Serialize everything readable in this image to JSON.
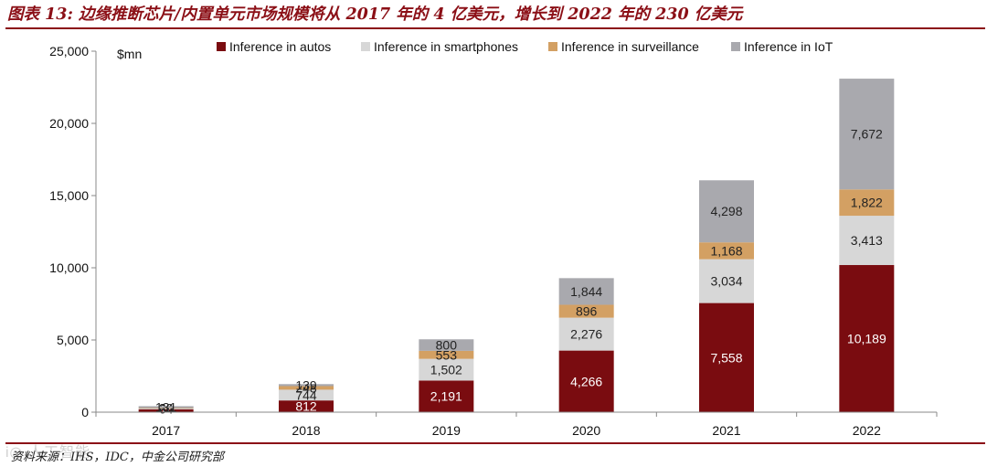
{
  "title": "图表 13: 边缘推断芯片/内置单元市场规模将从 2017 年的 4 亿美元，增长到 2022 年的 230 亿美元",
  "source": "资料来源：IHS，IDC，中金公司研究部",
  "watermark": "i◎ 人工智能",
  "chart_data": {
    "type": "bar",
    "stacked": true,
    "title": "图表 13: 边缘推断芯片/内置单元市场规模将从 2017 年的 4 亿美元，增长到 2022 年的 230 亿美元",
    "ylabel": "$mn",
    "xlabel": "",
    "ylim": [
      0,
      25000
    ],
    "yticks": [
      0,
      5000,
      10000,
      15000,
      20000,
      25000
    ],
    "ytick_labels": [
      "0",
      "5,000",
      "10,000",
      "15,000",
      "20,000",
      "25,000"
    ],
    "categories": [
      "2017",
      "2018",
      "2019",
      "2020",
      "2021",
      "2022"
    ],
    "legend_position": "top",
    "series": [
      {
        "name": "Inference in autos",
        "color": "#7a0c10",
        "values": [
          201,
          812,
          2191,
          4266,
          7558,
          10189
        ],
        "labels": [
          "201",
          "812",
          "2,191",
          "4,266",
          "7,558",
          "10,189"
        ],
        "label_color": "#ffffff"
      },
      {
        "name": "Inference in smartphones",
        "color": "#d7d7d7",
        "values": [
          64,
          744,
          1502,
          2276,
          3034,
          3413
        ],
        "labels": [
          "64",
          "744",
          "1,502",
          "2,276",
          "3,034",
          "3,413"
        ],
        "label_color": "#222222"
      },
      {
        "name": "Inference in surveillance",
        "color": "#d3a063",
        "values": [
          20,
          248,
          553,
          896,
          1168,
          1822
        ],
        "labels": [
          "20",
          "248",
          "553",
          "896",
          "1,168",
          "1,822"
        ],
        "label_color": "#222222"
      },
      {
        "name": "Inference in IoT",
        "color": "#a9a9ae",
        "values": [
          131,
          139,
          800,
          1844,
          4298,
          7672
        ],
        "labels": [
          "131",
          "139",
          "800",
          "1,844",
          "4,298",
          "7,672"
        ],
        "label_color": "#222222"
      }
    ]
  }
}
